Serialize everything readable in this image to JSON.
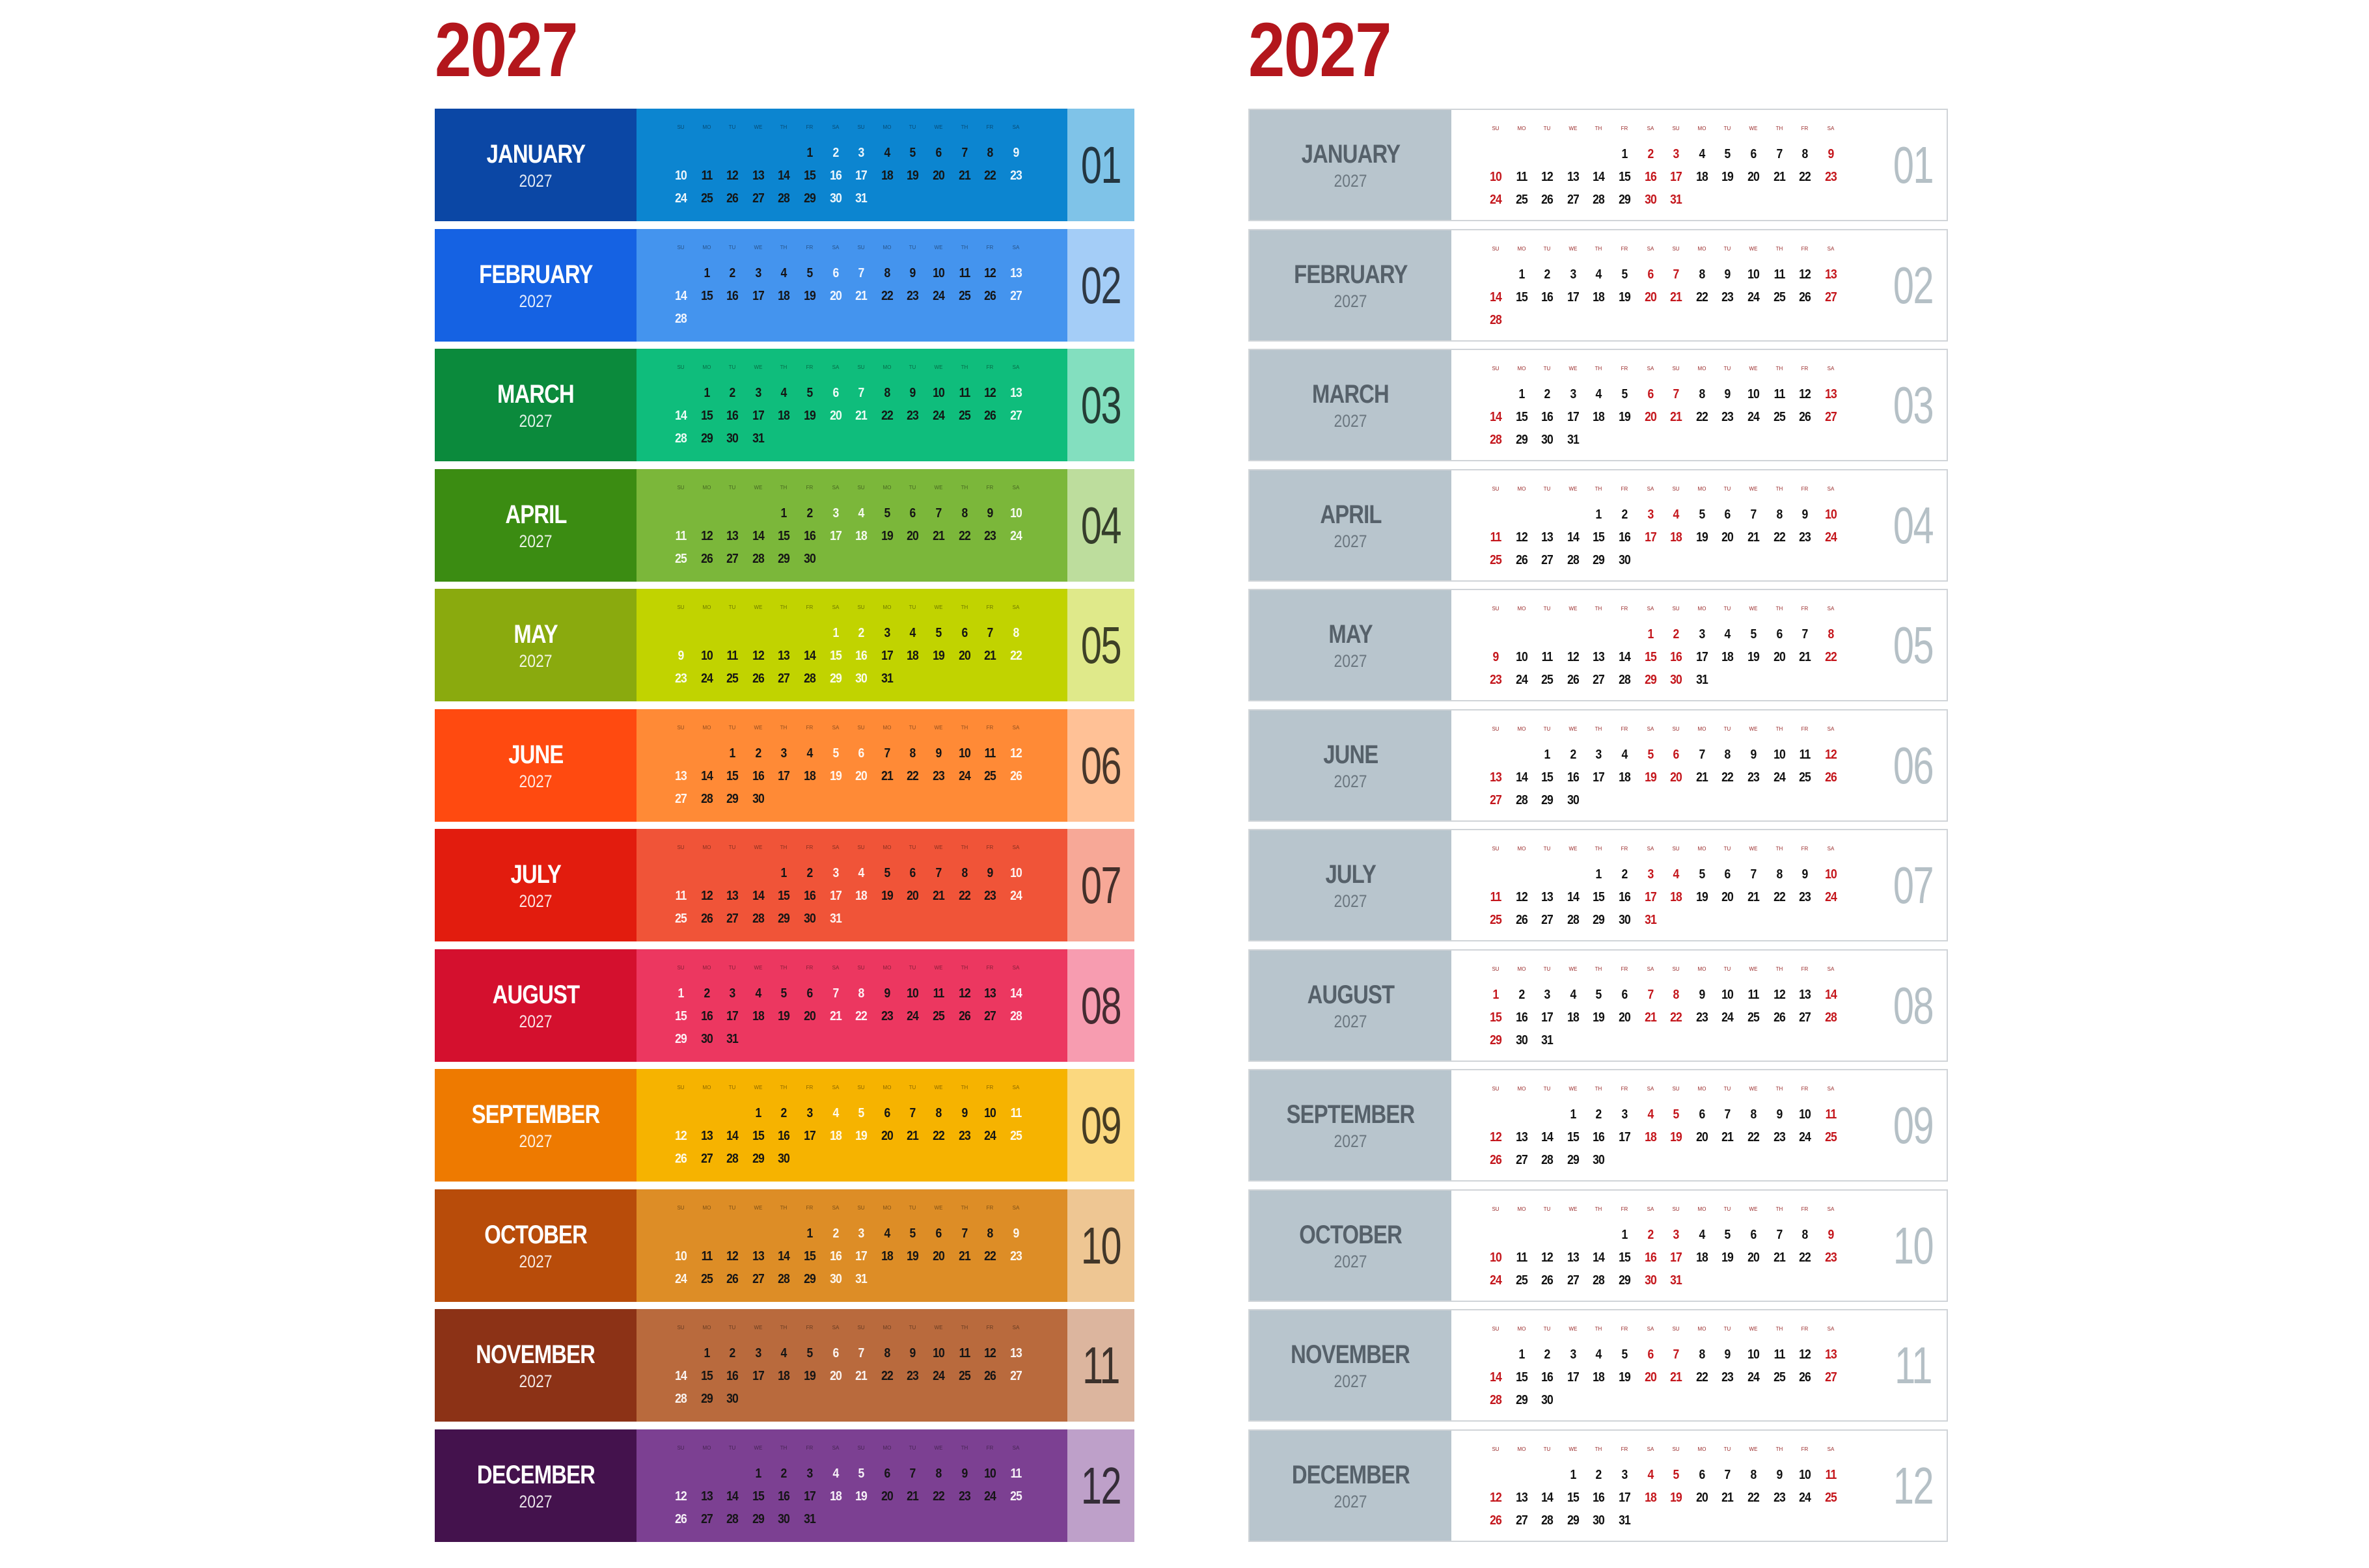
{
  "left_panel": {
    "year_title": "2027"
  },
  "right_panel": {
    "year_title": "2027"
  },
  "weekday_headers": [
    "SU",
    "MO",
    "TU",
    "WE",
    "TH",
    "FR",
    "SA",
    "SU",
    "MO",
    "TU",
    "WE",
    "TH",
    "FR",
    "SA"
  ],
  "months": [
    {
      "name": "JANUARY",
      "year": "2027",
      "number": "01",
      "start": 5,
      "days": 31,
      "colors": {
        "name": "#0b47a5",
        "grid": "#0c85d0",
        "num": "#7fc3e8"
      }
    },
    {
      "name": "FEBRUARY",
      "year": "2027",
      "number": "02",
      "start": 1,
      "days": 28,
      "colors": {
        "name": "#1562e3",
        "grid": "#4494ee",
        "num": "#a4cdf7"
      }
    },
    {
      "name": "MARCH",
      "year": "2027",
      "number": "03",
      "start": 1,
      "days": 31,
      "colors": {
        "name": "#0b8a3c",
        "grid": "#0fbd7c",
        "num": "#83dfbf"
      }
    },
    {
      "name": "APRIL",
      "year": "2027",
      "number": "04",
      "start": 4,
      "days": 30,
      "colors": {
        "name": "#3b8c12",
        "grid": "#7bb73a",
        "num": "#bddd9d"
      }
    },
    {
      "name": "MAY",
      "year": "2027",
      "number": "05",
      "start": 6,
      "days": 31,
      "colors": {
        "name": "#8aaa0e",
        "grid": "#c1d300",
        "num": "#dfe98a"
      }
    },
    {
      "name": "JUNE",
      "year": "2027",
      "number": "06",
      "start": 2,
      "days": 30,
      "colors": {
        "name": "#ff4a10",
        "grid": "#ff8a36",
        "num": "#ffc196"
      }
    },
    {
      "name": "JULY",
      "year": "2027",
      "number": "07",
      "start": 4,
      "days": 31,
      "colors": {
        "name": "#e21c0e",
        "grid": "#f05438",
        "num": "#f7a897"
      }
    },
    {
      "name": "AUGUST",
      "year": "2027",
      "number": "08",
      "start": 0,
      "days": 31,
      "colors": {
        "name": "#d4102e",
        "grid": "#ec3760",
        "num": "#f79cb0"
      }
    },
    {
      "name": "SEPTEMBER",
      "year": "2027",
      "number": "09",
      "start": 3,
      "days": 30,
      "colors": {
        "name": "#ee7a00",
        "grid": "#f6b300",
        "num": "#fbd87f"
      }
    },
    {
      "name": "OCTOBER",
      "year": "2027",
      "number": "10",
      "start": 5,
      "days": 31,
      "colors": {
        "name": "#b84c0a",
        "grid": "#dd8d26",
        "num": "#eec693"
      }
    },
    {
      "name": "NOVEMBER",
      "year": "2027",
      "number": "11",
      "start": 1,
      "days": 30,
      "colors": {
        "name": "#8c3216",
        "grid": "#b96a3d",
        "num": "#dcb59e"
      }
    },
    {
      "name": "DECEMBER",
      "year": "2027",
      "number": "12",
      "start": 3,
      "days": 31,
      "colors": {
        "name": "#44124d",
        "grid": "#7c4092",
        "num": "#bea0c9"
      }
    }
  ]
}
